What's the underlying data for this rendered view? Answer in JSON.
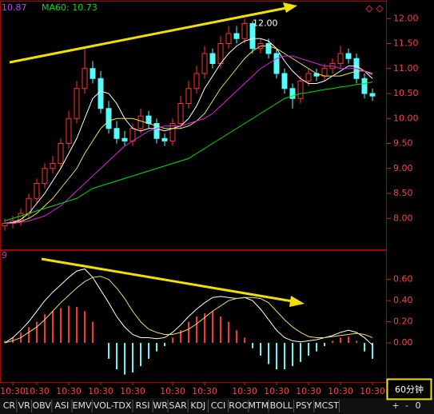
{
  "chart_data": [
    {
      "type": "candlestick",
      "legend": [
        {
          "text": "10.87",
          "color": "#c040ff"
        },
        {
          "text": "MA60: 10.73",
          "color": "#00e000"
        }
      ],
      "annotation": "12.00",
      "open": [
        7.85,
        7.9,
        7.95,
        8.1,
        8.4,
        8.7,
        9.0,
        9.1,
        9.5,
        10.0,
        10.6,
        11.0,
        10.8,
        10.2,
        9.8,
        9.6,
        9.55,
        9.8,
        10.05,
        9.9,
        9.6,
        9.55,
        9.9,
        10.3,
        10.6,
        10.9,
        11.3,
        11.1,
        11.5,
        11.7,
        11.6,
        11.9,
        11.4,
        11.5,
        11.3,
        10.9,
        10.6,
        10.4,
        10.75,
        10.9,
        10.85,
        11.0,
        11.1,
        11.3,
        11.2,
        10.8,
        10.5
      ],
      "high": [
        8.0,
        8.05,
        8.2,
        8.5,
        8.8,
        9.1,
        9.25,
        9.6,
        10.15,
        10.75,
        11.4,
        11.15,
        10.95,
        10.35,
        9.95,
        9.75,
        9.9,
        10.2,
        10.15,
        10.0,
        9.7,
        10.0,
        10.45,
        10.75,
        11.05,
        11.45,
        11.4,
        11.65,
        11.85,
        11.85,
        12.0,
        11.95,
        11.6,
        11.6,
        11.4,
        11.0,
        10.7,
        10.85,
        11.0,
        11.0,
        11.1,
        11.2,
        11.45,
        11.4,
        11.3,
        10.9,
        10.6
      ],
      "low": [
        7.75,
        7.8,
        7.85,
        8.0,
        8.3,
        8.6,
        8.9,
        9.0,
        9.4,
        9.9,
        10.5,
        10.7,
        10.1,
        9.7,
        9.5,
        9.45,
        9.45,
        9.7,
        9.8,
        9.5,
        9.45,
        9.45,
        9.8,
        10.2,
        10.5,
        10.8,
        11.0,
        11.0,
        11.4,
        11.5,
        11.5,
        11.3,
        11.3,
        11.2,
        10.8,
        10.5,
        10.2,
        10.3,
        10.65,
        10.75,
        10.75,
        10.9,
        11.0,
        11.1,
        10.7,
        10.4,
        10.35
      ],
      "close": [
        7.9,
        7.95,
        8.1,
        8.4,
        8.7,
        9.0,
        9.1,
        9.5,
        10.0,
        10.6,
        11.0,
        10.8,
        10.2,
        9.8,
        9.6,
        9.55,
        9.8,
        10.05,
        9.9,
        9.6,
        9.55,
        9.9,
        10.3,
        10.6,
        10.9,
        11.3,
        11.1,
        11.5,
        11.7,
        11.6,
        11.9,
        11.4,
        11.5,
        11.3,
        10.9,
        10.6,
        10.4,
        10.75,
        10.9,
        10.85,
        11.0,
        11.1,
        11.3,
        11.2,
        10.8,
        10.5,
        10.45
      ],
      "up_color": "#ff3232",
      "down_color": "#54fcfc",
      "series": [
        {
          "color": "#ffffff",
          "values": [
            7.9,
            7.92,
            7.98,
            8.1,
            8.3,
            8.5,
            8.75,
            9.0,
            9.3,
            9.6,
            10.0,
            10.4,
            10.55,
            10.5,
            10.3,
            10.0,
            9.8,
            9.75,
            9.8,
            9.8,
            9.75,
            9.8,
            9.85,
            10.0,
            10.25,
            10.6,
            10.85,
            11.1,
            11.3,
            11.45,
            11.55,
            11.6,
            11.6,
            11.55,
            11.4,
            11.15,
            10.95,
            10.8,
            10.7,
            10.7,
            10.75,
            10.85,
            10.95,
            11.05,
            11.05,
            10.95,
            10.8
          ]
        },
        {
          "color": "#e8e060",
          "values": [
            7.9,
            7.91,
            7.94,
            8.0,
            8.1,
            8.25,
            8.4,
            8.6,
            8.8,
            9.0,
            9.3,
            9.55,
            9.8,
            9.95,
            10.0,
            10.0,
            10.0,
            9.95,
            9.9,
            9.85,
            9.8,
            9.8,
            9.8,
            9.85,
            9.95,
            10.1,
            10.35,
            10.6,
            10.8,
            11.0,
            11.2,
            11.35,
            11.45,
            11.45,
            11.4,
            11.3,
            11.2,
            11.1,
            11.0,
            10.9,
            10.85,
            10.85,
            10.85,
            10.9,
            10.95,
            10.95,
            10.9
          ]
        },
        {
          "color": "#e020e0",
          "values": [
            7.9,
            7.9,
            7.92,
            7.95,
            8.0,
            8.05,
            8.15,
            8.25,
            8.4,
            8.55,
            8.7,
            8.85,
            9.0,
            9.15,
            9.3,
            9.45,
            9.55,
            9.65,
            9.75,
            9.8,
            9.85,
            9.85,
            9.85,
            9.9,
            9.95,
            10.0,
            10.1,
            10.25,
            10.4,
            10.55,
            10.7,
            10.85,
            11.0,
            11.1,
            11.2,
            11.25,
            11.25,
            11.2,
            11.15,
            11.1,
            11.05,
            11.05,
            11.0,
            11.0,
            11.0,
            10.95,
            10.87
          ]
        },
        {
          "color": "#00e000",
          "values": [
            7.95,
            8.0,
            8.05,
            8.1,
            8.15,
            8.2,
            8.25,
            8.3,
            8.35,
            8.4,
            8.5,
            8.6,
            8.65,
            8.7,
            8.75,
            8.8,
            8.85,
            8.9,
            8.95,
            9.0,
            9.05,
            9.1,
            9.15,
            9.2,
            9.3,
            9.4,
            9.5,
            9.6,
            9.7,
            9.8,
            9.9,
            10.0,
            10.1,
            10.2,
            10.3,
            10.4,
            10.45,
            10.5,
            10.52,
            10.55,
            10.58,
            10.6,
            10.63,
            10.65,
            10.68,
            10.7,
            10.73
          ]
        }
      ],
      "ylim": [
        7.38,
        12.34
      ],
      "yticks": [
        {
          "value": 12,
          "label": "12.00"
        },
        {
          "value": 11.5,
          "label": "11.50"
        },
        {
          "value": 11,
          "label": "11.00"
        },
        {
          "value": 10.5,
          "label": "10.50"
        },
        {
          "value": 10,
          "label": "10.00"
        },
        {
          "value": 9.5,
          "label": "9.50"
        },
        {
          "value": 9,
          "label": "9.00"
        },
        {
          "value": 8.5,
          "label": "8.50"
        },
        {
          "value": 8,
          "label": "8.00"
        }
      ]
    },
    {
      "type": "macd",
      "panel_label": "9",
      "categories": [
        null,
        "10:30",
        null,
        null,
        "10:30",
        null,
        null,
        null,
        "10:30",
        null,
        null,
        null,
        "10:30",
        null,
        null,
        null,
        "10:30",
        null,
        null,
        null,
        null,
        "10:30",
        null,
        null,
        null,
        "10:30",
        null,
        null,
        null,
        null,
        "10:30",
        null,
        null,
        null,
        "10:30",
        null,
        null,
        null,
        "10:30",
        null,
        null,
        null,
        "10:30",
        null,
        null,
        null,
        "10:30"
      ],
      "histogram": [
        0.02,
        0.05,
        0.1,
        0.15,
        0.2,
        0.27,
        0.3,
        0.33,
        0.35,
        0.34,
        0.3,
        0.2,
        0.0,
        -0.15,
        -0.25,
        -0.3,
        -0.28,
        -0.22,
        -0.15,
        -0.08,
        -0.03,
        0.05,
        0.12,
        0.2,
        0.25,
        0.28,
        0.3,
        0.25,
        0.2,
        0.12,
        0.05,
        -0.05,
        -0.12,
        -0.2,
        -0.25,
        -0.25,
        -0.22,
        -0.18,
        -0.12,
        -0.08,
        -0.03,
        0.02,
        0.05,
        0.06,
        0.02,
        -0.08,
        -0.15
      ],
      "up_color": "#ff3232",
      "down_color": "#54fcfc",
      "series": [
        {
          "color": "#ffffff",
          "values": [
            0.0,
            0.05,
            0.12,
            0.2,
            0.3,
            0.4,
            0.48,
            0.55,
            0.62,
            0.68,
            0.7,
            0.62,
            0.5,
            0.38,
            0.25,
            0.15,
            0.08,
            0.05,
            0.05,
            0.04,
            0.05,
            0.1,
            0.17,
            0.25,
            0.32,
            0.38,
            0.43,
            0.44,
            0.43,
            0.42,
            0.43,
            0.4,
            0.32,
            0.22,
            0.12,
            0.05,
            0.02,
            0.01,
            0.02,
            0.03,
            0.05,
            0.07,
            0.1,
            0.12,
            0.1,
            0.05,
            -0.02
          ]
        },
        {
          "color": "#e8e060",
          "values": [
            0.0,
            0.02,
            0.05,
            0.1,
            0.15,
            0.22,
            0.3,
            0.38,
            0.45,
            0.52,
            0.58,
            0.62,
            0.63,
            0.6,
            0.52,
            0.42,
            0.3,
            0.2,
            0.13,
            0.1,
            0.08,
            0.08,
            0.1,
            0.13,
            0.18,
            0.24,
            0.3,
            0.35,
            0.4,
            0.42,
            0.43,
            0.43,
            0.42,
            0.38,
            0.3,
            0.22,
            0.15,
            0.1,
            0.06,
            0.05,
            0.05,
            0.06,
            0.07,
            0.08,
            0.09,
            0.08,
            0.05
          ]
        }
      ],
      "ylim": [
        -0.37,
        0.87
      ],
      "yticks": [
        {
          "value": 0.6,
          "label": "0.60"
        },
        {
          "value": 0.4,
          "label": "0.40"
        },
        {
          "value": 0.2,
          "label": "0.20"
        },
        {
          "value": 0,
          "label": "0.00"
        }
      ]
    }
  ],
  "toolbar": {
    "tabs": [
      "CR",
      "VR",
      "OBV",
      "ASI",
      "EMV",
      "VOL-TDX",
      "RSI",
      "WR",
      "SAR",
      "KDJ",
      "CCI",
      "ROC",
      "MTM",
      "BOLL",
      "PSY",
      "MCST"
    ],
    "period": "60分钟",
    "controls": [
      "+",
      "-",
      "0"
    ]
  }
}
